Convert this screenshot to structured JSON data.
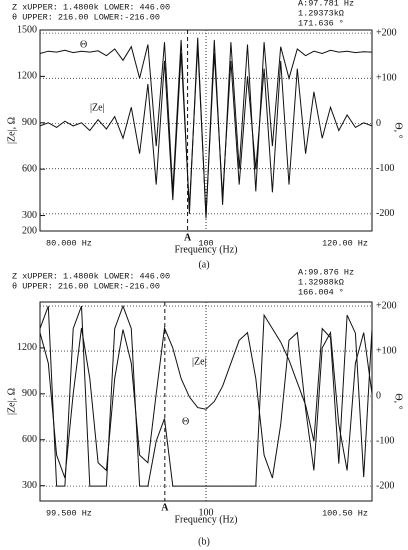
{
  "chart_data": [
    {
      "type": "line",
      "caption": "(a)",
      "header": [
        "Z   xUPPER: 1.4800k LOWER: 446.00",
        "θ    UPPER: 216.00  LOWER:-216.00"
      ],
      "readout": [
        "A:97.781 Hz",
        "1.29373kΩ",
        "171.636 °"
      ],
      "xlabel": "Frequency (Hz)",
      "ylabel": "|Ze|, Ω",
      "y2label": "Θ, °",
      "annotations": [
        "Θ",
        "|Ze|"
      ],
      "xlim": [
        80,
        120
      ],
      "xticks": [
        {
          "value": 80,
          "label": "80.000 Hz"
        },
        {
          "value": 100,
          "label": "100"
        },
        {
          "value": 120,
          "label": "120.00 Hz"
        }
      ],
      "marker": {
        "value": 97.781,
        "label": "A"
      },
      "ylim": [
        200,
        1500
      ],
      "yticks": [
        200,
        300,
        600,
        900,
        1200,
        1500
      ],
      "y2lim": [
        -238,
        207
      ],
      "y2ticks": [
        -200,
        -100,
        0,
        {
          "value": 100,
          "label": "+100"
        },
        {
          "value": 200,
          "label": "+200"
        }
      ],
      "x": [
        80,
        81,
        82,
        83,
        84,
        85,
        86,
        87,
        88,
        89,
        90,
        91,
        92,
        93,
        94,
        95,
        96,
        97,
        98,
        99,
        100,
        101,
        102,
        103,
        104,
        105,
        106,
        107,
        108,
        109,
        110,
        111,
        112,
        113,
        114,
        115,
        116,
        117,
        118,
        119,
        120
      ],
      "series": [
        {
          "name": "|Ze|",
          "color": "#111",
          "values": [
            880,
            900,
            870,
            910,
            880,
            900,
            850,
            920,
            860,
            940,
            800,
            1000,
            700,
            1150,
            500,
            1300,
            400,
            1350,
            350,
            1400,
            300,
            1350,
            420,
            1300,
            500,
            1200,
            600,
            1250,
            450,
            1300,
            500,
            1250,
            700,
            1100,
            800,
            1000,
            850,
            950,
            870,
            900,
            880
          ]
        },
        {
          "name": "Θ",
          "color": "#111",
          "axis": "y2",
          "values": [
            155,
            160,
            158,
            162,
            157,
            160,
            158,
            161,
            150,
            165,
            140,
            170,
            100,
            175,
            -50,
            180,
            -150,
            185,
            -200,
            190,
            -210,
            185,
            -180,
            180,
            -100,
            175,
            -150,
            180,
            -50,
            170,
            100,
            165,
            150,
            160,
            155,
            162,
            158,
            160,
            157,
            159,
            158
          ]
        }
      ]
    },
    {
      "type": "line",
      "caption": "(b)",
      "header": [
        "Z   xUPPER: 1.4800k LOWER: 446.00",
        "θ    UPPER: 216.00  LOWER:-216.00"
      ],
      "readout": [
        "A:99.876 Hz",
        "1.32988kΩ",
        "166.004 °"
      ],
      "xlabel": "Frequency (Hz)",
      "ylabel": "|Ze|, Ω",
      "y2label": "Θ, °",
      "annotations": [
        "Θ",
        "|Ze|"
      ],
      "xlim": [
        99.5,
        100.5
      ],
      "xticks": [
        {
          "value": 99.5,
          "label": "99.500 Hz"
        },
        100,
        {
          "value": 100.5,
          "label": "100.50 Hz"
        }
      ],
      "marker": {
        "value": 99.876,
        "label": "A"
      },
      "ylim": [
        200,
        1500
      ],
      "yticks": [
        300,
        600,
        900,
        1200
      ],
      "y2lim": [
        -233,
        209
      ],
      "y2ticks": [
        -200,
        -100,
        0,
        {
          "value": 100,
          "label": "+100"
        },
        {
          "value": 200,
          "label": "+200"
        }
      ],
      "x": [
        99.5,
        99.525,
        99.55,
        99.575,
        99.6,
        99.625,
        99.65,
        99.675,
        99.7,
        99.725,
        99.75,
        99.775,
        99.8,
        99.825,
        99.85,
        99.875,
        99.9,
        99.925,
        99.95,
        99.975,
        100,
        100.025,
        100.05,
        100.075,
        100.1,
        100.125,
        100.15,
        100.175,
        100.2,
        100.225,
        100.25,
        100.275,
        100.3,
        100.325,
        100.35,
        100.375,
        100.4,
        100.425,
        100.45,
        100.475,
        100.5
      ],
      "series": [
        {
          "name": "|Ze|",
          "color": "#111",
          "values": [
            1300,
            1100,
            500,
            350,
            900,
            1330,
            1000,
            450,
            400,
            1000,
            1320,
            1100,
            500,
            450,
            900,
            1330,
            1200,
            1000,
            880,
            810,
            800,
            850,
            950,
            1100,
            1250,
            1300,
            1000,
            500,
            350,
            700,
            1250,
            1300,
            800,
            400,
            1200,
            1300,
            700,
            400,
            1100,
            1300,
            900
          ]
        },
        {
          "name": "Θ",
          "color": "#111",
          "axis": "y2",
          "values": [
            150,
            200,
            -200,
            -200,
            150,
            200,
            -200,
            -200,
            -200,
            150,
            200,
            150,
            -200,
            -200,
            -100,
            -50,
            -200,
            -200,
            -200,
            -200,
            -200,
            -200,
            -200,
            -200,
            -200,
            -200,
            -200,
            180,
            150,
            120,
            80,
            30,
            -20,
            -100,
            150,
            130,
            -150,
            180,
            140,
            -180,
            150
          ]
        }
      ]
    }
  ]
}
